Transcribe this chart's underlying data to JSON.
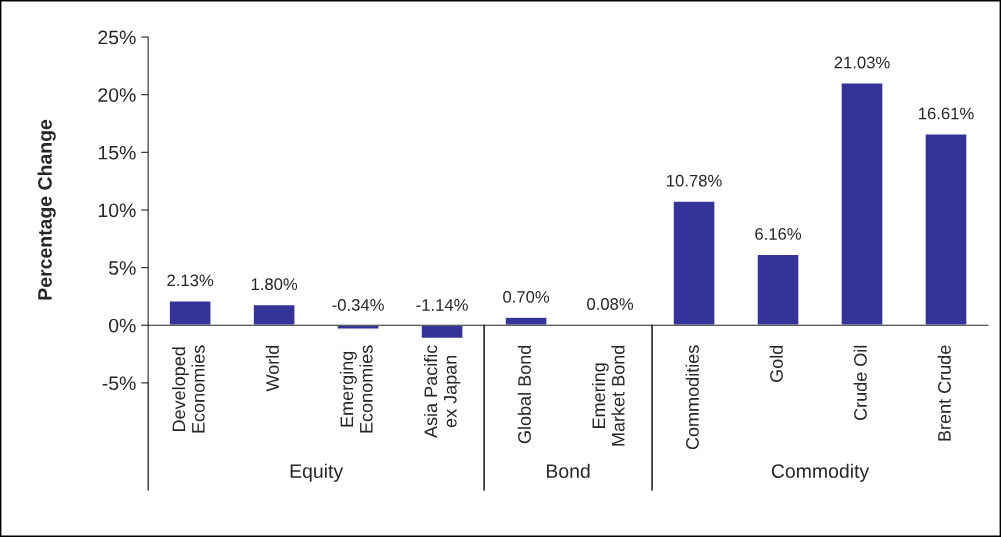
{
  "chart_data": {
    "type": "bar",
    "ylabel": "Percentage Change",
    "categories": [
      "Developed\nEconomies",
      "World",
      "Emerging\nEconomies",
      "Asia Pacific\nex Japan",
      "Global Bond",
      "Emering\nMarket Bond",
      "Commodities",
      "Gold",
      "Crude Oil",
      "Brent Crude"
    ],
    "values": [
      2.13,
      1.8,
      -0.34,
      -1.14,
      0.7,
      0.08,
      10.78,
      6.16,
      21.03,
      16.61
    ],
    "value_labels": [
      "2.13%",
      "1.80%",
      "-0.34%",
      "-1.14%",
      "0.70%",
      "0.08%",
      "10.78%",
      "6.16%",
      "21.03%",
      "16.61%"
    ],
    "color": "#333399",
    "ylim": [
      -5,
      25
    ],
    "yticks": [
      {
        "value": -5,
        "label": "-5%"
      },
      {
        "value": 0,
        "label": "0%"
      },
      {
        "value": 5,
        "label": "5%"
      },
      {
        "value": 10,
        "label": "10%"
      },
      {
        "value": 15,
        "label": "15%"
      },
      {
        "value": 20,
        "label": "20%"
      },
      {
        "value": 25,
        "label": "25%"
      }
    ],
    "annotations": [
      "Equity",
      "Bond",
      "Commodity"
    ],
    "grid": false,
    "legend": false
  }
}
